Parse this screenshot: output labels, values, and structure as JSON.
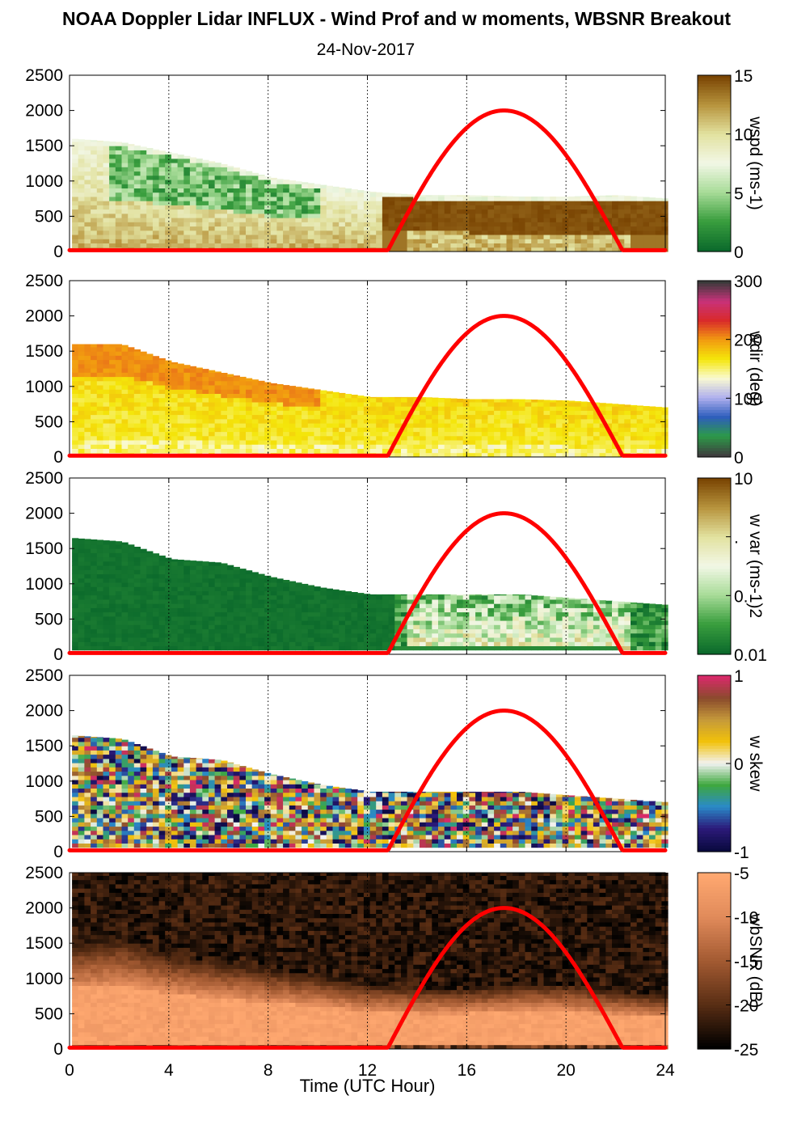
{
  "title": "NOAA Doppler Lidar INFLUX - Wind Prof and w moments, WBSNR Breakout",
  "subtitle": "24-Nov-2017",
  "chart_data": {
    "type": "heatmap",
    "xlabel": "Time (UTC Hour)",
    "xlim": [
      0,
      24
    ],
    "xticks": [
      "0",
      "4",
      "8",
      "12",
      "16",
      "20",
      "24"
    ],
    "ylim": [
      0,
      2500
    ],
    "yticks": [
      "0",
      "500",
      "1000",
      "1500",
      "2000",
      "2500"
    ],
    "sun_curve": {
      "color": "#ff0000",
      "rise_hour": 12.8,
      "set_hour": 22.3,
      "peak_hour": 17.5,
      "peak_value": 2000
    },
    "panels": [
      {
        "id": "wspd",
        "colorbar_label": "wspd (ms-1)",
        "colorbar_ticks": [
          "15",
          "10",
          "5",
          "0"
        ],
        "colormap": [
          "#7a4503",
          "#b8953e",
          "#e2e2a0",
          "#f2f7e6",
          "#a8dc98",
          "#3a9e3e",
          "#0c6b2c"
        ],
        "boundary_top": [
          [
            0,
            1600
          ],
          [
            2,
            1550
          ],
          [
            4,
            1400
          ],
          [
            6,
            1250
          ],
          [
            8,
            1050
          ],
          [
            10,
            950
          ],
          [
            12,
            850
          ],
          [
            14,
            800
          ],
          [
            16,
            800
          ],
          [
            18,
            780
          ],
          [
            20,
            780
          ],
          [
            22,
            800
          ],
          [
            24,
            750
          ]
        ]
      },
      {
        "id": "wdir",
        "colorbar_label": "wdir (deg)",
        "colorbar_ticks": [
          "300",
          "200",
          "100",
          "0"
        ],
        "colormap": [
          "#3a3a3a",
          "#c8327a",
          "#d92a2a",
          "#f29a10",
          "#f4e60a",
          "#fafad2",
          "#b0b0ee",
          "#2e5ebd",
          "#2c9a48",
          "#3f3f3f"
        ],
        "boundary_top": [
          [
            0,
            1600
          ],
          [
            2,
            1600
          ],
          [
            4,
            1350
          ],
          [
            6,
            1200
          ],
          [
            8,
            1050
          ],
          [
            10,
            950
          ],
          [
            12,
            850
          ],
          [
            14,
            850
          ],
          [
            16,
            820
          ],
          [
            18,
            820
          ],
          [
            20,
            800
          ],
          [
            22,
            750
          ],
          [
            24,
            700
          ]
        ]
      },
      {
        "id": "wvar",
        "colorbar_label": "w var (ms-1)2",
        "colorbar_ticks": [
          "10",
          ".",
          "0.",
          "0.01"
        ],
        "colormap": [
          "#7a4503",
          "#b8953e",
          "#e2e2a0",
          "#f2f7e6",
          "#a8dc98",
          "#3a9e3e",
          "#0c6b2c"
        ],
        "boundary_top": [
          [
            0,
            1650
          ],
          [
            2,
            1600
          ],
          [
            4,
            1350
          ],
          [
            6,
            1300
          ],
          [
            8,
            1100
          ],
          [
            10,
            950
          ],
          [
            12,
            850
          ],
          [
            14,
            850
          ],
          [
            16,
            850
          ],
          [
            18,
            850
          ],
          [
            20,
            800
          ],
          [
            22,
            750
          ],
          [
            24,
            700
          ]
        ]
      },
      {
        "id": "wskew",
        "colorbar_label": "w skew",
        "colorbar_ticks": [
          "1",
          "0",
          "-1"
        ],
        "colormap": [
          "#d92a6a",
          "#8a4b2c",
          "#c69a3a",
          "#f2c20a",
          "#f2f2f2",
          "#3ea83e",
          "#2a8ac8",
          "#2c1a7a",
          "#0a0a40"
        ],
        "boundary_top": [
          [
            0,
            1650
          ],
          [
            2,
            1600
          ],
          [
            4,
            1350
          ],
          [
            6,
            1300
          ],
          [
            8,
            1100
          ],
          [
            10,
            950
          ],
          [
            12,
            850
          ],
          [
            14,
            850
          ],
          [
            16,
            850
          ],
          [
            18,
            850
          ],
          [
            20,
            800
          ],
          [
            22,
            750
          ],
          [
            24,
            700
          ]
        ]
      },
      {
        "id": "wbsnr",
        "colorbar_label": "wbSNR (dB)",
        "colorbar_ticks": [
          "-5",
          "-10",
          "-15",
          "-20",
          "-25"
        ],
        "colormap": [
          "#ffa870",
          "#e08a5a",
          "#a35a32",
          "#5a2e14",
          "#000000"
        ],
        "boundary_top": [
          [
            0,
            1400
          ],
          [
            2,
            1450
          ],
          [
            4,
            1250
          ],
          [
            6,
            1150
          ],
          [
            8,
            1050
          ],
          [
            10,
            950
          ],
          [
            12,
            850
          ],
          [
            14,
            800
          ],
          [
            16,
            800
          ],
          [
            18,
            850
          ],
          [
            20,
            850
          ],
          [
            22,
            750
          ],
          [
            24,
            700
          ]
        ]
      }
    ]
  }
}
